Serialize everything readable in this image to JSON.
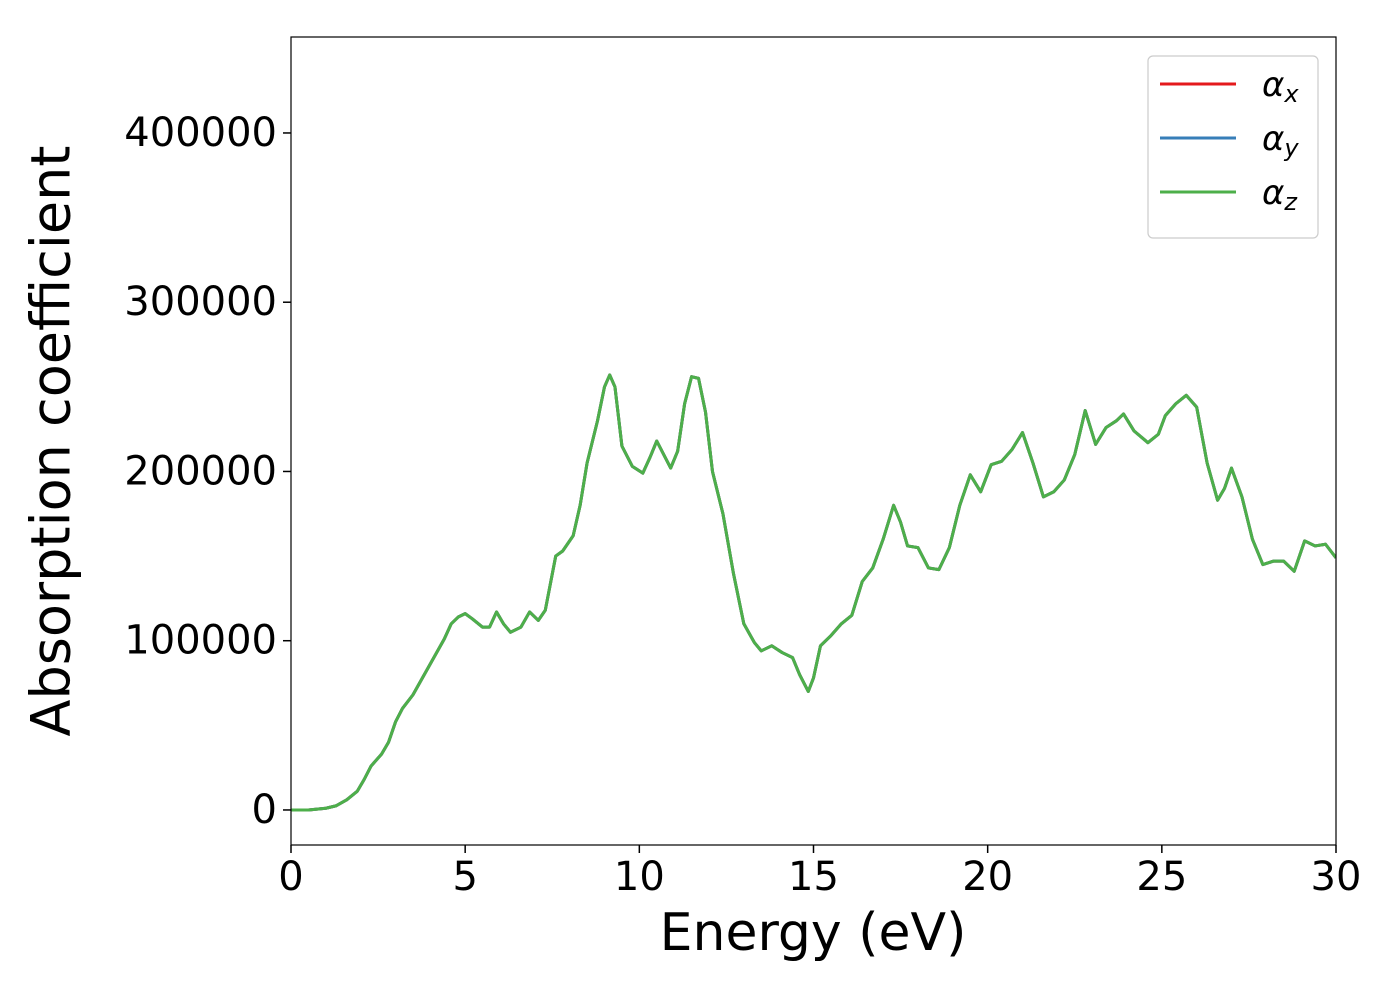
{
  "chart_data": {
    "type": "line",
    "xlabel": "Energy (eV)",
    "ylabel": "Absorption coefficient",
    "x": [
      0,
      0.5,
      1.0,
      1.3,
      1.6,
      1.9,
      2.1,
      2.3,
      2.6,
      2.8,
      3.0,
      3.2,
      3.5,
      3.8,
      4.1,
      4.4,
      4.6,
      4.8,
      5.0,
      5.2,
      5.5,
      5.7,
      5.9,
      6.1,
      6.3,
      6.6,
      6.85,
      7.1,
      7.3,
      7.6,
      7.8,
      8.1,
      8.3,
      8.5,
      8.8,
      9.0,
      9.15,
      9.3,
      9.5,
      9.8,
      10.1,
      10.3,
      10.5,
      10.7,
      10.9,
      11.1,
      11.3,
      11.5,
      11.7,
      11.9,
      12.1,
      12.4,
      12.7,
      13.0,
      13.3,
      13.5,
      13.8,
      14.1,
      14.4,
      14.6,
      14.85,
      15.0,
      15.2,
      15.5,
      15.8,
      16.1,
      16.4,
      16.7,
      17.0,
      17.3,
      17.5,
      17.7,
      18.0,
      18.3,
      18.6,
      18.9,
      19.2,
      19.5,
      19.8,
      20.1,
      20.4,
      20.7,
      21.0,
      21.3,
      21.6,
      21.9,
      22.2,
      22.5,
      22.8,
      23.1,
      23.4,
      23.7,
      23.9,
      24.2,
      24.6,
      24.9,
      25.1,
      25.4,
      25.7,
      26.0,
      26.3,
      26.6,
      26.8,
      27.0,
      27.3,
      27.6,
      27.9,
      28.2,
      28.5,
      28.8,
      29.1,
      29.4,
      29.7,
      30.0
    ],
    "series": [
      {
        "name": "αx",
        "color": "#e41a1c",
        "values": [
          0,
          0,
          1000,
          2500,
          6000,
          11000,
          18000,
          26000,
          33000,
          40000,
          52000,
          60000,
          68000,
          79000,
          90000,
          101000,
          110000,
          114000,
          116000,
          113000,
          108000,
          108000,
          117000,
          110000,
          105000,
          108000,
          117000,
          112000,
          118000,
          150000,
          153000,
          162000,
          180000,
          205000,
          230000,
          250000,
          257000,
          250000,
          215000,
          203000,
          199000,
          208000,
          218000,
          210000,
          202000,
          212000,
          240000,
          256000,
          255000,
          235000,
          200000,
          175000,
          140000,
          110000,
          99000,
          94000,
          97000,
          93000,
          90000,
          80000,
          70000,
          78000,
          97000,
          103000,
          110000,
          115000,
          135000,
          143000,
          160000,
          180000,
          170000,
          156000,
          155000,
          143000,
          142000,
          155000,
          180000,
          198000,
          188000,
          204000,
          206000,
          213000,
          223000,
          205000,
          185000,
          188000,
          195000,
          210000,
          236000,
          216000,
          226000,
          230000,
          234000,
          224000,
          217000,
          222000,
          233000,
          240000,
          245000,
          238000,
          205000,
          183000,
          190000,
          202000,
          185000,
          160000,
          145000,
          147000,
          147000,
          141000,
          159000,
          156000,
          157000,
          149000
        ]
      },
      {
        "name": "αy",
        "color": "#377eb8",
        "values": [
          0,
          0,
          1000,
          2500,
          6000,
          11000,
          18000,
          26000,
          33000,
          40000,
          52000,
          60000,
          68000,
          79000,
          90000,
          101000,
          110000,
          114000,
          116000,
          113000,
          108000,
          108000,
          117000,
          110000,
          105000,
          108000,
          117000,
          112000,
          118000,
          150000,
          153000,
          162000,
          180000,
          205000,
          230000,
          250000,
          257000,
          250000,
          215000,
          203000,
          199000,
          208000,
          218000,
          210000,
          202000,
          212000,
          240000,
          256000,
          255000,
          235000,
          200000,
          175000,
          140000,
          110000,
          99000,
          94000,
          97000,
          93000,
          90000,
          80000,
          70000,
          78000,
          97000,
          103000,
          110000,
          115000,
          135000,
          143000,
          160000,
          180000,
          170000,
          156000,
          155000,
          143000,
          142000,
          155000,
          180000,
          198000,
          188000,
          204000,
          206000,
          213000,
          223000,
          205000,
          185000,
          188000,
          195000,
          210000,
          236000,
          216000,
          226000,
          230000,
          234000,
          224000,
          217000,
          222000,
          233000,
          240000,
          245000,
          238000,
          205000,
          183000,
          190000,
          202000,
          185000,
          160000,
          145000,
          147000,
          147000,
          141000,
          159000,
          156000,
          157000,
          149000
        ]
      },
      {
        "name": "αz",
        "color": "#4daf4a",
        "values": [
          0,
          0,
          1000,
          2500,
          6000,
          11000,
          18000,
          26000,
          33000,
          40000,
          52000,
          60000,
          68000,
          79000,
          90000,
          101000,
          110000,
          114000,
          116000,
          113000,
          108000,
          108000,
          117000,
          110000,
          105000,
          108000,
          117000,
          112000,
          118000,
          150000,
          153000,
          162000,
          180000,
          205000,
          230000,
          250000,
          257000,
          250000,
          215000,
          203000,
          199000,
          208000,
          218000,
          210000,
          202000,
          212000,
          240000,
          256000,
          255000,
          235000,
          200000,
          175000,
          140000,
          110000,
          99000,
          94000,
          97000,
          93000,
          90000,
          80000,
          70000,
          78000,
          97000,
          103000,
          110000,
          115000,
          135000,
          143000,
          160000,
          180000,
          170000,
          156000,
          155000,
          143000,
          142000,
          155000,
          180000,
          198000,
          188000,
          204000,
          206000,
          213000,
          223000,
          205000,
          185000,
          188000,
          195000,
          210000,
          236000,
          216000,
          226000,
          230000,
          234000,
          224000,
          217000,
          222000,
          233000,
          240000,
          245000,
          238000,
          205000,
          183000,
          190000,
          202000,
          185000,
          160000,
          145000,
          147000,
          147000,
          141000,
          159000,
          156000,
          157000,
          149000
        ]
      }
    ],
    "xlim": [
      0,
      30
    ],
    "xticks": [
      0,
      5,
      10,
      15,
      20,
      25,
      30
    ],
    "ylim": [
      -20700,
      456700
    ],
    "yticks": [
      0,
      100000,
      200000,
      300000,
      400000
    ],
    "grid": false,
    "legend": "upper right"
  }
}
